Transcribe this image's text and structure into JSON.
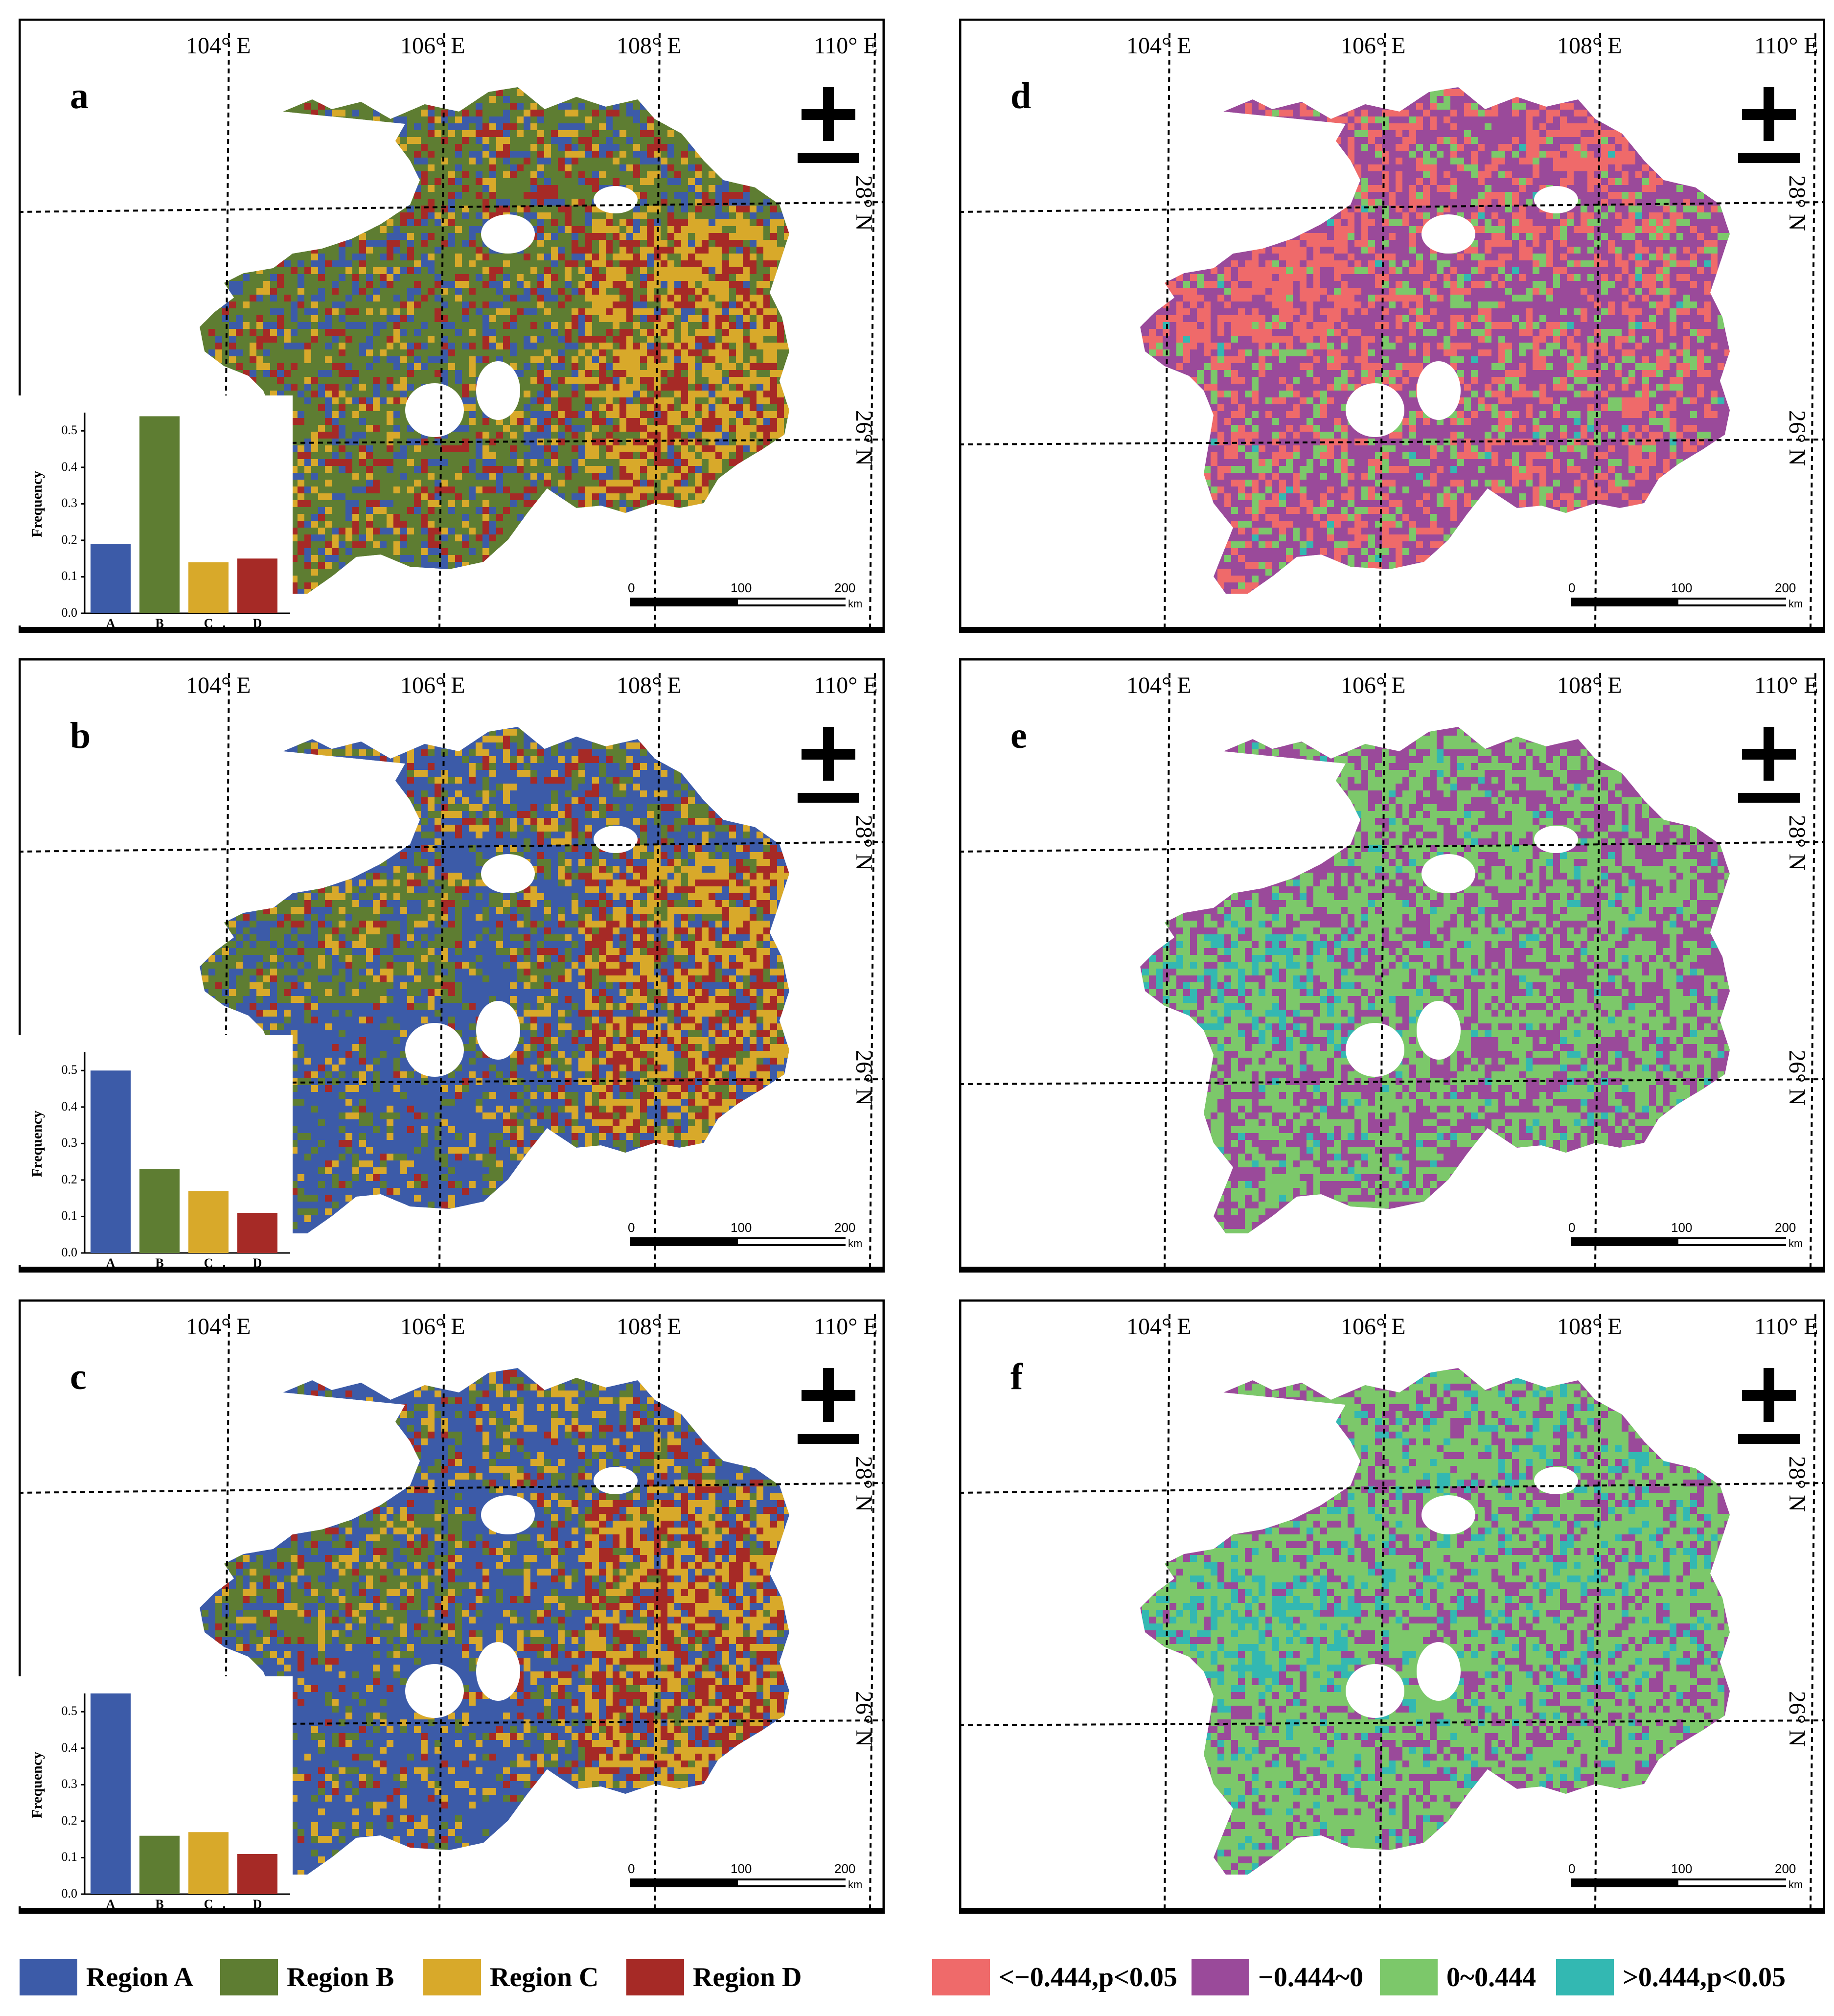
{
  "colors": {
    "region_a": "#3c5ba8",
    "region_b": "#5e7d32",
    "region_c": "#d8a92a",
    "region_d": "#a62a26",
    "corr_neg_sig": "#ef6a6a",
    "corr_neg": "#9a4a9a",
    "corr_pos": "#7cc86a",
    "corr_pos_sig": "#33b8b2"
  },
  "axes": {
    "lon_labels": [
      "104° E",
      "106° E",
      "108° E",
      "110° E"
    ],
    "lat_labels": [
      "28° N",
      "26° N"
    ]
  },
  "scale_bar": {
    "ticks": [
      "0",
      "100",
      "200"
    ],
    "unit": "km"
  },
  "inset_axis": {
    "ylabel": "Frequency",
    "yticks": [
      "0.0",
      "0.1",
      "0.2",
      "0.3",
      "0.4",
      "0.5"
    ],
    "xticks": [
      "A",
      "B",
      "C",
      "D"
    ]
  },
  "panels": [
    {
      "letter": "a",
      "kind": "region",
      "palette": [
        "region_a",
        "region_b",
        "region_c",
        "region_d"
      ],
      "weights": [
        0.19,
        0.54,
        0.13,
        0.14
      ]
    },
    {
      "letter": "b",
      "kind": "region",
      "palette": [
        "region_a",
        "region_b",
        "region_c",
        "region_d"
      ],
      "weights": [
        0.5,
        0.22,
        0.17,
        0.11
      ]
    },
    {
      "letter": "c",
      "kind": "region",
      "palette": [
        "region_a",
        "region_b",
        "region_c",
        "region_d"
      ],
      "weights": [
        0.55,
        0.16,
        0.18,
        0.11
      ]
    },
    {
      "letter": "d",
      "kind": "corr",
      "palette": [
        "corr_neg_sig",
        "corr_neg",
        "corr_pos",
        "corr_pos_sig"
      ],
      "weights": [
        0.3,
        0.52,
        0.17,
        0.01
      ]
    },
    {
      "letter": "e",
      "kind": "corr",
      "palette": [
        "corr_neg_sig",
        "corr_neg",
        "corr_pos",
        "corr_pos_sig"
      ],
      "weights": [
        0.0,
        0.42,
        0.53,
        0.05
      ]
    },
    {
      "letter": "f",
      "kind": "corr",
      "palette": [
        "corr_neg_sig",
        "corr_neg",
        "corr_pos",
        "corr_pos_sig"
      ],
      "weights": [
        0.0,
        0.28,
        0.6,
        0.12
      ]
    }
  ],
  "chart_data": [
    {
      "type": "bar",
      "panel": "a",
      "categories": [
        "A",
        "B",
        "C",
        "D"
      ],
      "values": [
        0.19,
        0.54,
        0.14,
        0.15
      ],
      "ylabel": "Frequency",
      "ylim": [
        0,
        0.55
      ]
    },
    {
      "type": "bar",
      "panel": "b",
      "categories": [
        "A",
        "B",
        "C",
        "D"
      ],
      "values": [
        0.5,
        0.23,
        0.17,
        0.11
      ],
      "ylabel": "Frequency",
      "ylim": [
        0,
        0.55
      ]
    },
    {
      "type": "bar",
      "panel": "c",
      "categories": [
        "A",
        "B",
        "C",
        "D"
      ],
      "values": [
        0.55,
        0.16,
        0.17,
        0.11
      ],
      "ylabel": "Frequency",
      "ylim": [
        0,
        0.55
      ]
    }
  ],
  "legend_regions": [
    {
      "label": "Region A",
      "color_key": "region_a"
    },
    {
      "label": "Region B",
      "color_key": "region_b"
    },
    {
      "label": "Region C",
      "color_key": "region_c"
    },
    {
      "label": "Region D",
      "color_key": "region_d"
    }
  ],
  "legend_corr": [
    {
      "label": "<−0.444,p<0.05",
      "color_key": "corr_neg_sig"
    },
    {
      "label": "−0.444~0",
      "color_key": "corr_neg"
    },
    {
      "label": "0~0.444",
      "color_key": "corr_pos"
    },
    {
      "label": ">0.444,p<0.05",
      "color_key": "corr_pos_sig"
    }
  ]
}
